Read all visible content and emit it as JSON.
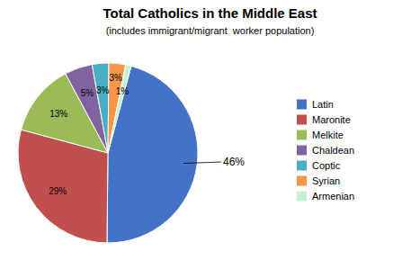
{
  "chart_data": {
    "type": "pie",
    "title": "Total Catholics in the Middle East",
    "subtitle": "(includes immigrant/migrant  worker population)",
    "categories": [
      "Latin",
      "Maronite",
      "Melkite",
      "Chaldean",
      "Coptic",
      "Syrian",
      "Armenian"
    ],
    "values": [
      46,
      29,
      13,
      5,
      3,
      3,
      1
    ],
    "value_labels": [
      "46%",
      "29%",
      "13%",
      "5%",
      "3%",
      "3%",
      "1%"
    ],
    "colors": [
      "#4472C4",
      "#C0504D",
      "#9BBB59",
      "#8064A2",
      "#4BACC6",
      "#F79646",
      "#C6EFCE"
    ],
    "legend": "right"
  }
}
